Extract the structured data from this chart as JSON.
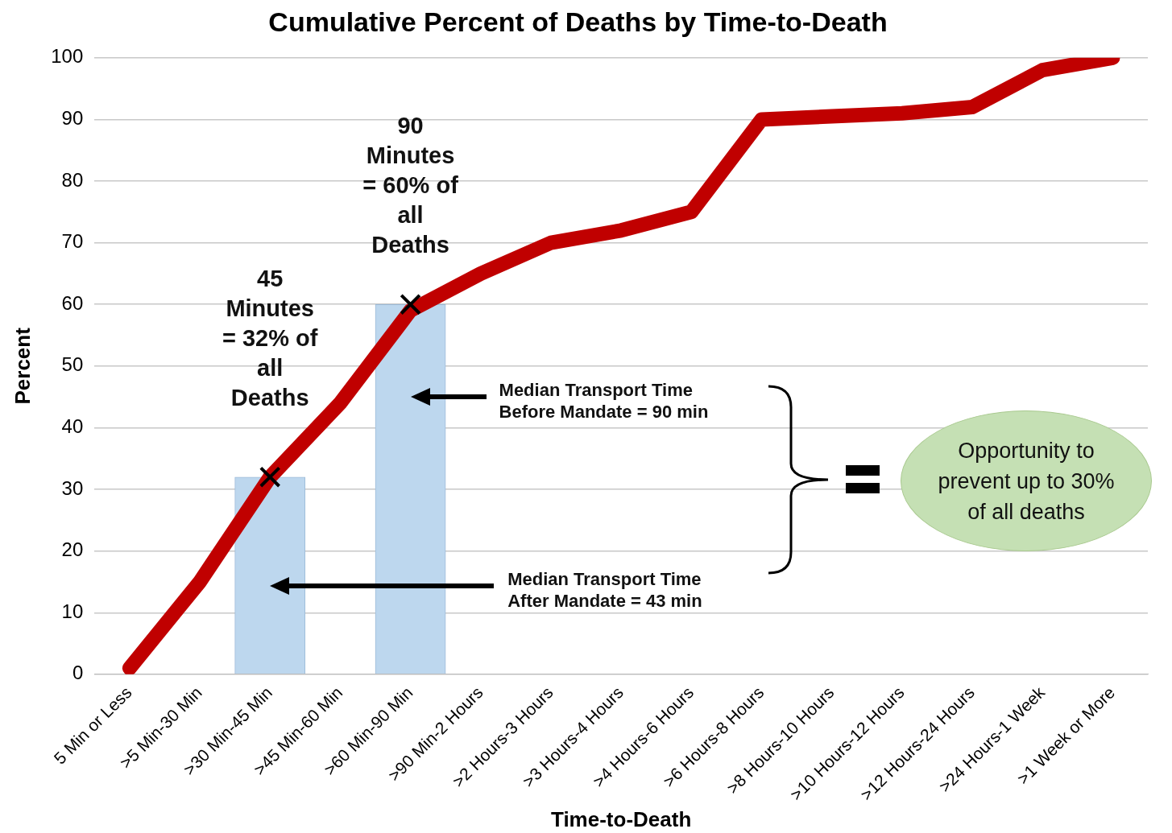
{
  "chart_data": {
    "type": "line",
    "title": "Cumulative Percent of Deaths by Time-to-Death",
    "xlabel": "Time-to-Death",
    "ylabel": "Percent",
    "categories": [
      "5 Min or Less",
      ">5 Min-30 Min",
      ">30 Min-45 Min",
      ">45 Min-60 Min",
      ">60 Min-90 Min",
      ">90 Min-2 Hours",
      ">2 Hours-3 Hours",
      ">3 Hours-4 Hours",
      ">4 Hours-6 Hours",
      ">6 Hours-8 Hours",
      ">8 Hours-10 Hours",
      ">10 Hours-12 Hours",
      ">12 Hours-24 Hours",
      ">24 Hours-1 Week",
      ">1 Week or More"
    ],
    "series": [
      {
        "type": "bar",
        "color": "#bdd7ee",
        "values": [
          null,
          null,
          32,
          null,
          60,
          null,
          null,
          null,
          null,
          null,
          null,
          null,
          null,
          null,
          null
        ]
      },
      {
        "color": "#c00000",
        "values": [
          1,
          15,
          32,
          44,
          59,
          65,
          70,
          72,
          75,
          90,
          90.5,
          91,
          92,
          98,
          100
        ]
      },
      {
        "type": "scatter",
        "color": "#000000",
        "marker": "cross",
        "x": [
          ">30 Min-45 Min",
          ">60 Min-90 Min"
        ],
        "values": [
          32,
          60
        ]
      }
    ],
    "ylim": [
      0,
      100
    ],
    "yticks": [
      0,
      10,
      20,
      30,
      40,
      50,
      60,
      70,
      80,
      90,
      100
    ],
    "grid": "y",
    "legend": false,
    "annotations": [
      {
        "text": "45 Minutes = 32% of all Deaths",
        "x": ">30 Min-45 Min",
        "y": 32
      },
      {
        "text": "90 Minutes = 60% of all Deaths",
        "x": ">60 Min-90 Min",
        "y": 60
      },
      "Median Transport Time Before Mandate = 90 min",
      "Median Transport Time After Mandate = 43 min",
      "Opportunity to prevent up to 30% of all deaths"
    ]
  }
}
